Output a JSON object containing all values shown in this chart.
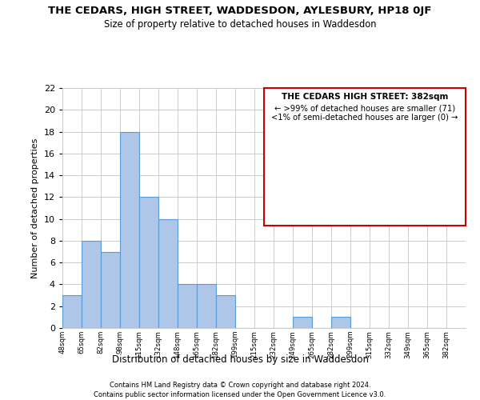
{
  "title": "THE CEDARS, HIGH STREET, WADDESDON, AYLESBURY, HP18 0JF",
  "subtitle": "Size of property relative to detached houses in Waddesdon",
  "xlabel": "Distribution of detached houses by size in Waddesdon",
  "ylabel": "Number of detached properties",
  "tick_labels": [
    "48sqm",
    "65sqm",
    "82sqm",
    "98sqm",
    "115sqm",
    "132sqm",
    "148sqm",
    "165sqm",
    "182sqm",
    "199sqm",
    "215sqm",
    "232sqm",
    "249sqm",
    "265sqm",
    "282sqm",
    "299sqm",
    "315sqm",
    "332sqm",
    "349sqm",
    "365sqm",
    "382sqm"
  ],
  "values": [
    3,
    8,
    7,
    18,
    12,
    10,
    4,
    4,
    3,
    0,
    0,
    0,
    1,
    0,
    1,
    0,
    0,
    0,
    0,
    0
  ],
  "bar_color": "#aec6e8",
  "bar_edge_color": "#5b9bd5",
  "ylim": [
    0,
    22
  ],
  "yticks": [
    0,
    2,
    4,
    6,
    8,
    10,
    12,
    14,
    16,
    18,
    20,
    22
  ],
  "annotation_box_edge": "#cc0000",
  "annotation_title": "THE CEDARS HIGH STREET: 382sqm",
  "annotation_line1": "← >99% of detached houses are smaller (71)",
  "annotation_line2": "<1% of semi-detached houses are larger (0) →",
  "footnote1": "Contains HM Land Registry data © Crown copyright and database right 2024.",
  "footnote2": "Contains public sector information licensed under the Open Government Licence v3.0.",
  "grid_color": "#cccccc",
  "background_color": "#ffffff"
}
